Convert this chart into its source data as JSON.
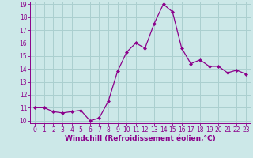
{
  "x": [
    0,
    1,
    2,
    3,
    4,
    5,
    6,
    7,
    8,
    9,
    10,
    11,
    12,
    13,
    14,
    15,
    16,
    17,
    18,
    19,
    20,
    21,
    22,
    23
  ],
  "y": [
    11.0,
    11.0,
    10.7,
    10.6,
    10.7,
    10.8,
    10.0,
    10.2,
    11.5,
    13.8,
    15.3,
    16.0,
    15.6,
    17.5,
    19.0,
    18.4,
    15.6,
    14.4,
    14.7,
    14.2,
    14.2,
    13.7,
    13.9,
    13.6
  ],
  "line_color": "#8B008B",
  "marker": "D",
  "marker_size": 2.0,
  "bg_color": "#cce8e8",
  "grid_color": "#aacfcf",
  "xlabel": "Windchill (Refroidissement éolien,°C)",
  "xlabel_color": "#8B008B",
  "tick_color": "#8B008B",
  "ylim": [
    10,
    19
  ],
  "xlim": [
    -0.5,
    23.5
  ],
  "yticks": [
    10,
    11,
    12,
    13,
    14,
    15,
    16,
    17,
    18,
    19
  ],
  "xticks": [
    0,
    1,
    2,
    3,
    4,
    5,
    6,
    7,
    8,
    9,
    10,
    11,
    12,
    13,
    14,
    15,
    16,
    17,
    18,
    19,
    20,
    21,
    22,
    23
  ],
  "tick_fontsize": 5.5,
  "xlabel_fontsize": 6.5
}
